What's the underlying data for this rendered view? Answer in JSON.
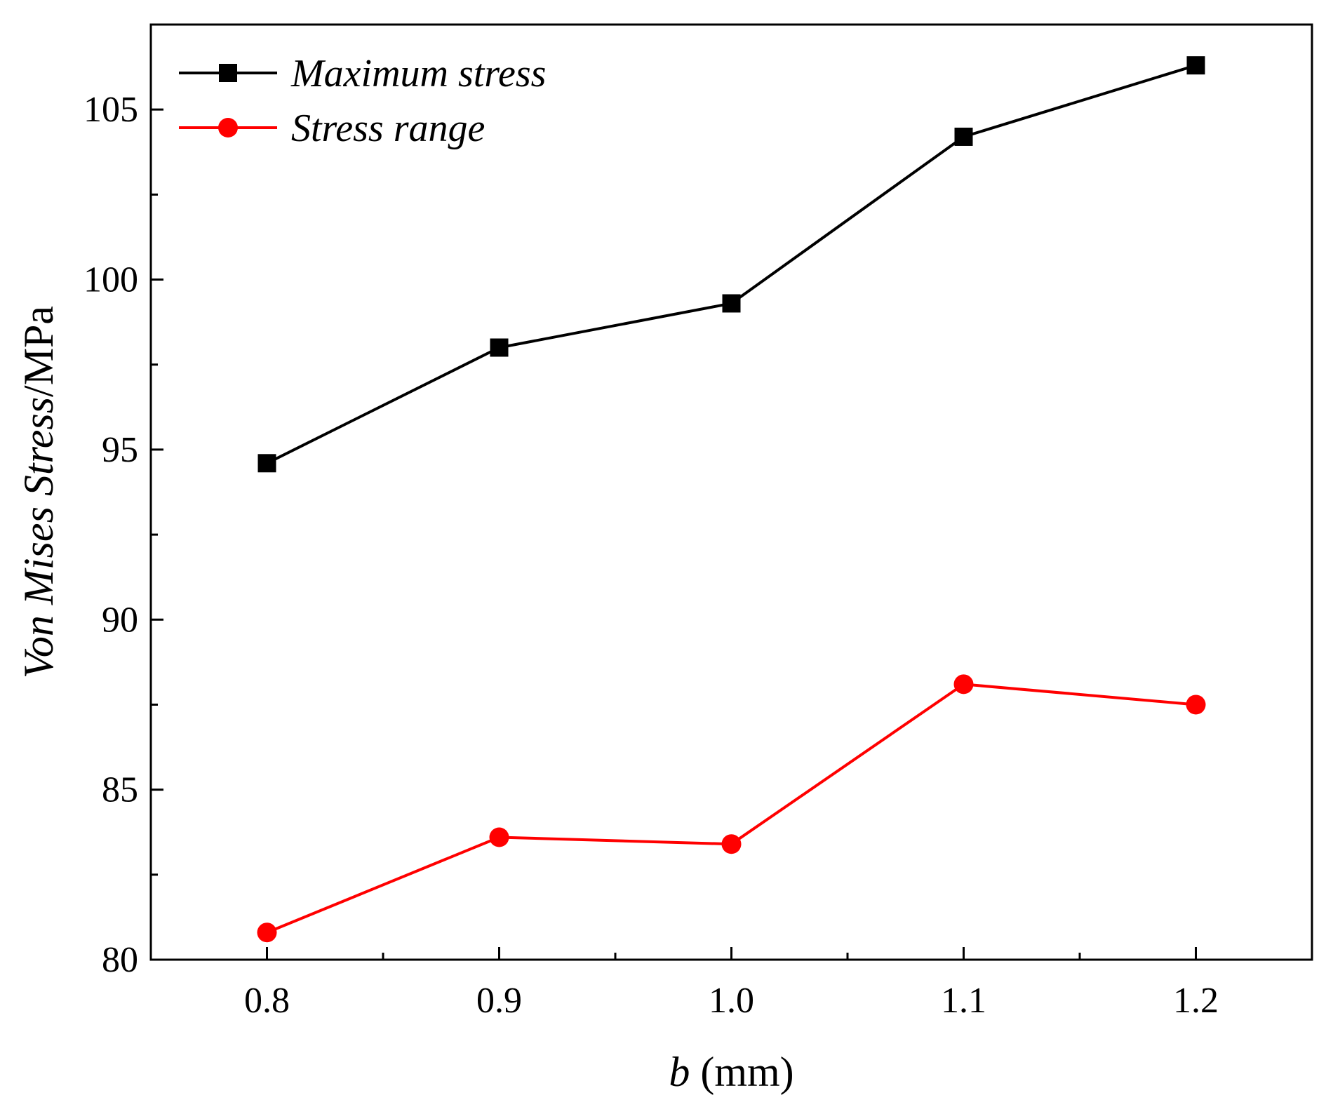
{
  "chart_data": {
    "type": "line",
    "title": "",
    "x": [
      0.8,
      0.9,
      1.0,
      1.1,
      1.2
    ],
    "x_tick_labels": [
      "0.8",
      "0.9",
      "1.0",
      "1.1",
      "1.2"
    ],
    "xlim": [
      0.75,
      1.25
    ],
    "ylim": [
      80,
      107.5
    ],
    "y_ticks": [
      80,
      85,
      90,
      95,
      100,
      105
    ],
    "y_tick_labels": [
      "80",
      "85",
      "90",
      "95",
      "100",
      "105"
    ],
    "xlabel": {
      "italic": "b",
      "rest": " (mm)"
    },
    "ylabel": {
      "italic": "Von Mises Stress",
      "rest": "/MPa"
    },
    "legend_position": "top-left",
    "grid": false,
    "series": [
      {
        "name": "Maximum stress",
        "color": "#000000",
        "marker": "square",
        "values": [
          94.6,
          98.0,
          99.3,
          104.2,
          106.3
        ]
      },
      {
        "name": "Stress range",
        "color": "#ff0000",
        "marker": "circle",
        "values": [
          80.8,
          83.6,
          83.4,
          88.1,
          87.5
        ]
      }
    ]
  }
}
